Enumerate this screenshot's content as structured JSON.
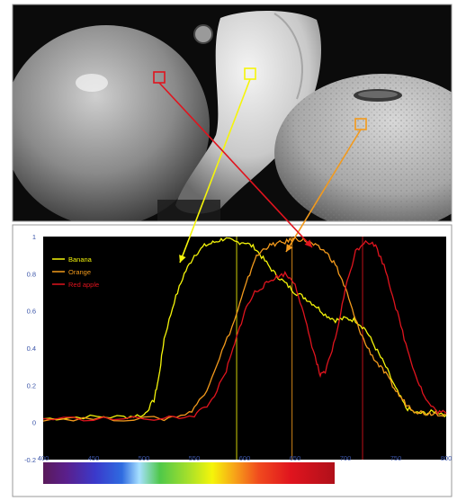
{
  "chart_data": {
    "type": "line",
    "title": "",
    "xlabel": "",
    "ylabel": "",
    "xlim": [
      400,
      800
    ],
    "ylim": [
      -0.2,
      1.0
    ],
    "x_ticks": [
      "400",
      "450",
      "500",
      "550",
      "600",
      "650",
      "700",
      "750",
      "800"
    ],
    "y_ticks": [
      "-0.2",
      "0",
      "0.2",
      "0.4",
      "0.6",
      "0.8",
      "1"
    ],
    "grid": false,
    "legend": "top-left",
    "background": "#000000",
    "series": [
      {
        "name": "Banana",
        "color": "#f5f50a",
        "points": [
          [
            400,
            0.02
          ],
          [
            440,
            0.03
          ],
          [
            480,
            0.03
          ],
          [
            500,
            0.04
          ],
          [
            510,
            0.12
          ],
          [
            515,
            0.25
          ],
          [
            520,
            0.45
          ],
          [
            530,
            0.65
          ],
          [
            540,
            0.8
          ],
          [
            550,
            0.9
          ],
          [
            560,
            0.95
          ],
          [
            570,
            0.97
          ],
          [
            580,
            0.99
          ],
          [
            590,
            0.97
          ],
          [
            600,
            0.97
          ],
          [
            610,
            0.94
          ],
          [
            620,
            0.87
          ],
          [
            630,
            0.8
          ],
          [
            640,
            0.75
          ],
          [
            650,
            0.7
          ],
          [
            660,
            0.67
          ],
          [
            670,
            0.63
          ],
          [
            680,
            0.58
          ],
          [
            690,
            0.55
          ],
          [
            700,
            0.56
          ],
          [
            710,
            0.55
          ],
          [
            720,
            0.5
          ],
          [
            730,
            0.4
          ],
          [
            740,
            0.3
          ],
          [
            750,
            0.18
          ],
          [
            760,
            0.08
          ],
          [
            770,
            0.05
          ],
          [
            780,
            0.05
          ],
          [
            790,
            0.06
          ],
          [
            800,
            0.04
          ]
        ]
      },
      {
        "name": "Orange",
        "color": "#f39a1c",
        "points": [
          [
            400,
            0.02
          ],
          [
            460,
            0.02
          ],
          [
            520,
            0.02
          ],
          [
            545,
            0.05
          ],
          [
            560,
            0.15
          ],
          [
            575,
            0.35
          ],
          [
            590,
            0.55
          ],
          [
            600,
            0.72
          ],
          [
            610,
            0.88
          ],
          [
            620,
            0.94
          ],
          [
            630,
            0.96
          ],
          [
            640,
            0.97
          ],
          [
            650,
            0.99
          ],
          [
            660,
            0.98
          ],
          [
            670,
            0.95
          ],
          [
            680,
            0.92
          ],
          [
            690,
            0.85
          ],
          [
            700,
            0.72
          ],
          [
            710,
            0.55
          ],
          [
            720,
            0.42
          ],
          [
            730,
            0.33
          ],
          [
            740,
            0.26
          ],
          [
            750,
            0.17
          ],
          [
            760,
            0.1
          ],
          [
            770,
            0.06
          ],
          [
            780,
            0.05
          ],
          [
            790,
            0.05
          ],
          [
            800,
            0.04
          ]
        ]
      },
      {
        "name": "Red apple",
        "color": "#e0141e",
        "points": [
          [
            400,
            0.02
          ],
          [
            460,
            0.02
          ],
          [
            520,
            0.02
          ],
          [
            550,
            0.04
          ],
          [
            565,
            0.1
          ],
          [
            580,
            0.25
          ],
          [
            590,
            0.42
          ],
          [
            600,
            0.6
          ],
          [
            610,
            0.7
          ],
          [
            620,
            0.74
          ],
          [
            630,
            0.78
          ],
          [
            640,
            0.8
          ],
          [
            650,
            0.75
          ],
          [
            660,
            0.55
          ],
          [
            670,
            0.35
          ],
          [
            675,
            0.25
          ],
          [
            680,
            0.27
          ],
          [
            690,
            0.45
          ],
          [
            700,
            0.72
          ],
          [
            710,
            0.92
          ],
          [
            720,
            0.98
          ],
          [
            730,
            0.95
          ],
          [
            740,
            0.82
          ],
          [
            750,
            0.62
          ],
          [
            760,
            0.42
          ],
          [
            770,
            0.25
          ],
          [
            780,
            0.12
          ],
          [
            790,
            0.06
          ],
          [
            800,
            0.05
          ]
        ]
      }
    ],
    "vertical_markers": [
      {
        "x": 592,
        "color": "#f5f50a"
      },
      {
        "x": 647,
        "color": "#f39a1c"
      },
      {
        "x": 717,
        "color": "#e0141e"
      }
    ]
  },
  "photo": {
    "markers": [
      {
        "name": "Banana",
        "color": "#f5f50a"
      },
      {
        "name": "Orange",
        "color": "#f39a1c"
      },
      {
        "name": "Red apple",
        "color": "#e0141e"
      }
    ]
  }
}
